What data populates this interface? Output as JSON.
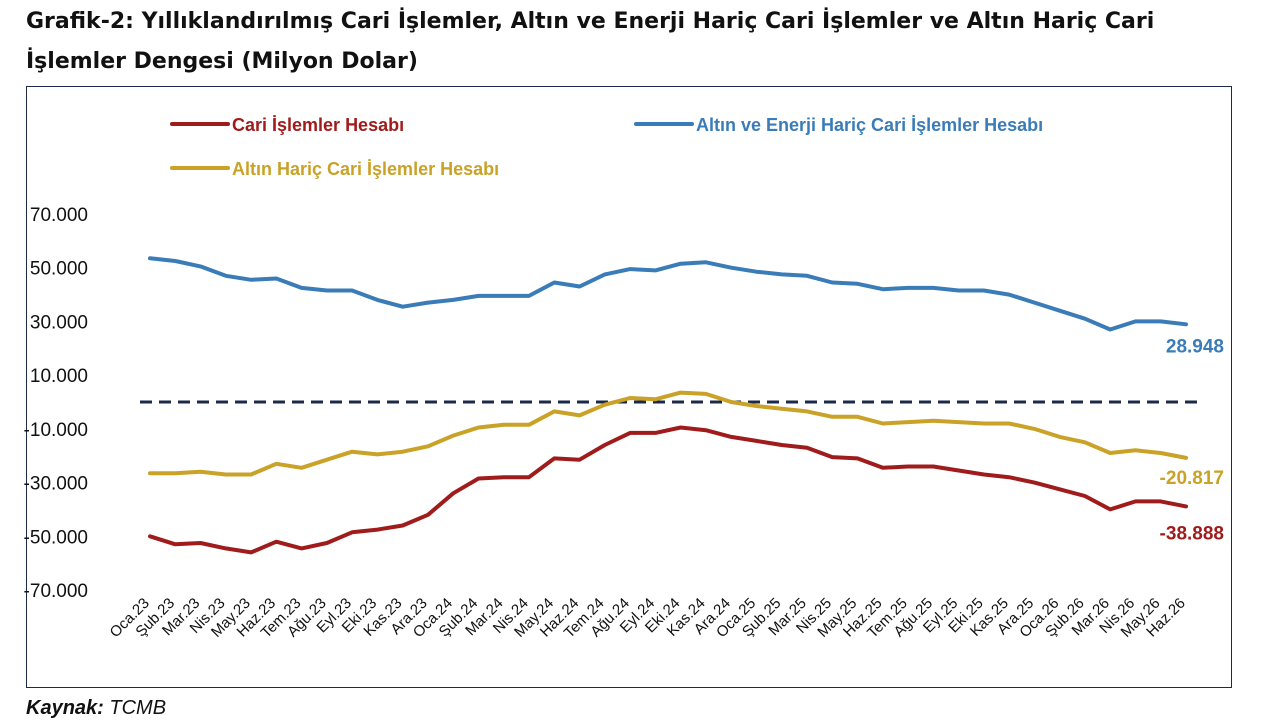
{
  "title": "Grafik-2: Yıllıklandırılmış Cari İşlemler, Altın ve Enerji Hariç Cari İşlemler ve Altın Hariç Cari İşlemler Dengesi (Milyon Dolar)",
  "source": {
    "label": "Kaynak:",
    "value": " TCMB"
  },
  "chart_data": {
    "type": "line",
    "title": "",
    "xlabel": "",
    "ylabel": "",
    "ylim": [
      -70000,
      70000
    ],
    "yticks": [
      70000,
      50000,
      30000,
      10000,
      -10000,
      -30000,
      -50000,
      -70000
    ],
    "ytick_labels": [
      "70.000",
      "50.000",
      "30.000",
      "10.000",
      "-10.000",
      "-30.000",
      "-50.000",
      "-70.000"
    ],
    "grid": false,
    "legend": "top",
    "reference_line": {
      "y": 0,
      "style": "dashed",
      "color": "#1b2a4a"
    },
    "categories": [
      "Oca.23",
      "Şub.23",
      "Mar.23",
      "Nis.23",
      "May.23",
      "Haz.23",
      "Tem.23",
      "Ağu.23",
      "Eyl.23",
      "Eki.23",
      "Kas.23",
      "Ara.23",
      "Oca.24",
      "Şub.24",
      "Mar.24",
      "Nis.24",
      "May.24",
      "Haz.24",
      "Tem.24",
      "Ağu.24",
      "Eyl.24",
      "Eki.24",
      "Kas.24",
      "Ara.24",
      "Oca.25",
      "Şub.25",
      "Mar.25",
      "Nis.25",
      "May.25",
      "Haz.25",
      "Tem.25",
      "Ağu.25",
      "Eyl.25",
      "Eki.25",
      "Kas.25",
      "Ara.25",
      "Oca.26",
      "Şub.26",
      "Mar.26",
      "Nis.26",
      "May.26",
      "Haz.26"
    ],
    "series": [
      {
        "name": "Cari İşlemler Hesabı",
        "color": "#a01c1c",
        "values": [
          -50000,
          -53000,
          -52500,
          -54500,
          -56000,
          -52000,
          -54500,
          -52500,
          -48500,
          -47500,
          -46000,
          -42000,
          -34000,
          -28500,
          -28000,
          -28000,
          -21000,
          -21500,
          -16000,
          -11500,
          -11500,
          -9500,
          -10500,
          -13000,
          -14500,
          -16000,
          -17000,
          -20500,
          -21000,
          -24500,
          -24000,
          -24000,
          -25500,
          -27000,
          -28000,
          -30000,
          -32500,
          -35000,
          -40000,
          -37000,
          -37000,
          -38888
        ],
        "end_label": "-38.888"
      },
      {
        "name": "Altın ve Enerji Hariç Cari İşlemler Hesabı",
        "color": "#3a7cb8",
        "values": [
          53500,
          52500,
          50500,
          47000,
          45500,
          46000,
          42500,
          41500,
          41500,
          38000,
          35500,
          37000,
          38000,
          39500,
          39500,
          39500,
          44500,
          43000,
          47500,
          49500,
          49000,
          51500,
          52000,
          50000,
          48500,
          47500,
          47000,
          44500,
          44000,
          42000,
          42500,
          42500,
          41500,
          41500,
          40000,
          37000,
          34000,
          31000,
          27000,
          30000,
          30000,
          28948
        ],
        "end_label": "28.948"
      },
      {
        "name": "Altın Hariç Cari İşlemler Hesabı",
        "color": "#c9a227",
        "values": [
          -26500,
          -26500,
          -26000,
          -27000,
          -27000,
          -23000,
          -24500,
          -21500,
          -18500,
          -19500,
          -18500,
          -16500,
          -12500,
          -9500,
          -8500,
          -8500,
          -3500,
          -5000,
          -1000,
          1500,
          1000,
          3500,
          3000,
          0,
          -1500,
          -2500,
          -3500,
          -5500,
          -5500,
          -8000,
          -7500,
          -7000,
          -7500,
          -8000,
          -8000,
          -10000,
          -13000,
          -15000,
          -19000,
          -18000,
          -19000,
          -20817
        ],
        "end_label": "-20.817"
      }
    ]
  }
}
